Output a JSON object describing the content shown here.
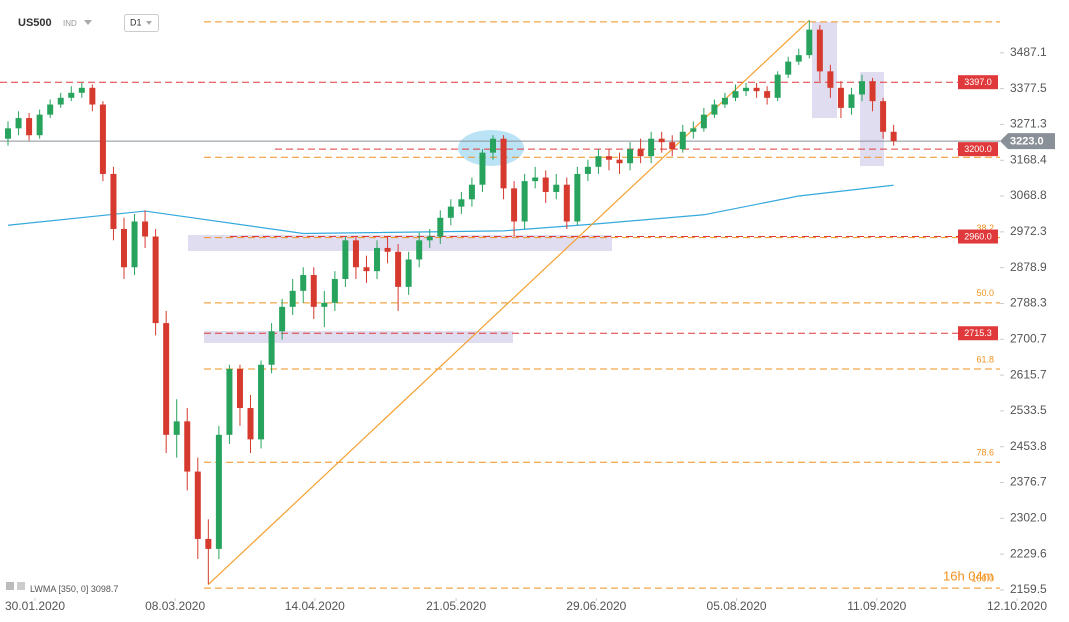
{
  "chart_data": {
    "type": "candlestick",
    "symbol": "US500",
    "market": "IND",
    "interval": "D1",
    "countdown": "16h 04m",
    "colors": {
      "up": "#27a35e",
      "down": "#d63a2f"
    },
    "open": [
      3230,
      3260,
      3290,
      3240,
      3300,
      3330,
      3350,
      3365,
      3380,
      3330,
      3130,
      2980,
      2880,
      3000,
      2960,
      2740,
      2480,
      2510,
      2400,
      2260,
      2240,
      2480,
      2630,
      2540,
      2470,
      2640,
      2720,
      2780,
      2820,
      2860,
      2780,
      2790,
      2850,
      2950,
      2880,
      2870,
      2930,
      2920,
      2830,
      2900,
      2950,
      2960,
      3010,
      3040,
      3060,
      3100,
      3190,
      3230,
      3090,
      3000,
      3110,
      3120,
      3080,
      3100,
      3000,
      3130,
      3150,
      3180,
      3170,
      3160,
      3200,
      3180,
      3230,
      3220,
      3200,
      3250,
      3260,
      3300,
      3330,
      3350,
      3370,
      3380,
      3370,
      3350,
      3420,
      3460,
      3480,
      3560,
      3430,
      3380,
      3320,
      3360,
      3400,
      3340,
      3250
    ],
    "high": [
      3280,
      3310,
      3305,
      3315,
      3345,
      3365,
      3385,
      3395,
      3390,
      3340,
      3150,
      3010,
      3020,
      3030,
      2980,
      2770,
      2560,
      2540,
      2430,
      2300,
      2500,
      2640,
      2640,
      2570,
      2650,
      2740,
      2800,
      2850,
      2880,
      2880,
      2820,
      2870,
      2960,
      2960,
      2910,
      2950,
      2960,
      2940,
      2920,
      2970,
      2980,
      3030,
      3060,
      3080,
      3120,
      3200,
      3240,
      3240,
      3110,
      3130,
      3150,
      3140,
      3130,
      3120,
      3150,
      3170,
      3200,
      3200,
      3190,
      3220,
      3230,
      3250,
      3250,
      3240,
      3270,
      3280,
      3320,
      3345,
      3365,
      3390,
      3395,
      3395,
      3385,
      3430,
      3475,
      3500,
      3590,
      3575,
      3450,
      3400,
      3380,
      3420,
      3410,
      3350,
      3270
    ],
    "low": [
      3210,
      3240,
      3225,
      3230,
      3290,
      3320,
      3340,
      3350,
      3310,
      3110,
      2950,
      2850,
      2860,
      2930,
      2710,
      2440,
      2430,
      2360,
      2220,
      2170,
      2220,
      2460,
      2500,
      2440,
      2450,
      2620,
      2700,
      2760,
      2790,
      2750,
      2730,
      2770,
      2830,
      2850,
      2840,
      2850,
      2890,
      2770,
      2810,
      2880,
      2930,
      2940,
      2990,
      3020,
      3040,
      3080,
      3170,
      3060,
      2960,
      2980,
      3090,
      3050,
      3060,
      2980,
      2990,
      3110,
      3130,
      3140,
      3130,
      3140,
      3160,
      3160,
      3190,
      3180,
      3190,
      3230,
      3250,
      3290,
      3320,
      3340,
      3355,
      3350,
      3330,
      3340,
      3410,
      3450,
      3470,
      3400,
      3350,
      3290,
      3300,
      3340,
      3310,
      3230,
      3210
    ],
    "close": [
      3260,
      3290,
      3240,
      3300,
      3330,
      3350,
      3365,
      3380,
      3330,
      3130,
      2980,
      2880,
      3000,
      2960,
      2740,
      2480,
      2510,
      2400,
      2260,
      2240,
      2480,
      2630,
      2540,
      2470,
      2640,
      2720,
      2780,
      2820,
      2860,
      2780,
      2790,
      2850,
      2950,
      2880,
      2870,
      2930,
      2920,
      2830,
      2900,
      2950,
      2960,
      3010,
      3040,
      3060,
      3100,
      3190,
      3230,
      3090,
      3000,
      3110,
      3120,
      3080,
      3100,
      3000,
      3130,
      3150,
      3180,
      3170,
      3160,
      3200,
      3180,
      3230,
      3220,
      3200,
      3250,
      3260,
      3300,
      3330,
      3350,
      3370,
      3380,
      3370,
      3350,
      3420,
      3460,
      3480,
      3560,
      3430,
      3380,
      3320,
      3360,
      3400,
      3340,
      3250,
      3223
    ],
    "xlim": [
      -0.76,
      95.7
    ],
    "xticks": [
      {
        "value": 2.56,
        "label": "30.01.2020"
      },
      {
        "value": 15.85,
        "label": "08.03.2020"
      },
      {
        "value": 29.1,
        "label": "14.04.2020"
      },
      {
        "value": 42.5,
        "label": "21.05.2020"
      },
      {
        "value": 55.8,
        "label": "29.06.2020"
      },
      {
        "value": 69.1,
        "label": "05.08.2020"
      },
      {
        "value": 82.4,
        "label": "11.09.2020"
      },
      {
        "value": 95.7,
        "label": "12.10.2020"
      }
    ],
    "ylim": [
      2144,
      3623
    ],
    "log": true,
    "yticks": [
      3487.1,
      3377.5,
      3271.3,
      3168.4,
      3068.8,
      2972.3,
      2878.9,
      2788.3,
      2700.7,
      2615.7,
      2533.5,
      2453.8,
      2376.7,
      {
        "value": 2302,
        "label": "2302.0"
      },
      2229.6,
      2159.5
    ],
    "series": [
      {
        "name": "LWMA [350, 0]",
        "color": "#35a9dc",
        "x": [
          0,
          13,
          28,
          47,
          56,
          66,
          75,
          84
        ],
        "values": [
          2990,
          3028,
          2968,
          2975,
          2994,
          3018,
          3069,
          3098.7
        ]
      }
    ],
    "levels": {
      "color": "#e0393b",
      "values": [
        {
          "value": 3397,
          "label": "3397.0"
        },
        {
          "value": 3200,
          "label": "3200.0"
        },
        {
          "value": 2960,
          "label": "2960.0"
        },
        {
          "value": 2715.3,
          "label": "2715.3"
        }
      ]
    },
    "fib": {
      "color": "#f0921e",
      "levels": [
        {
          "value": 3585
        },
        {
          "value": 3177
        },
        {
          "value": 2957,
          "label": "38.2"
        },
        {
          "value": 2790,
          "label": "50.0"
        },
        {
          "value": 2630,
          "label": "61.8"
        },
        {
          "value": 2420,
          "label": "78.6"
        },
        {
          "value": 2163,
          "label": "100.0"
        }
      ]
    },
    "trendline": {
      "color": "#f4a030",
      "x": [
        19,
        76
      ],
      "values": [
        2170,
        3590
      ]
    },
    "last_price": {
      "value": 3223,
      "label": "3223.0",
      "color": "#8a9098"
    }
  }
}
